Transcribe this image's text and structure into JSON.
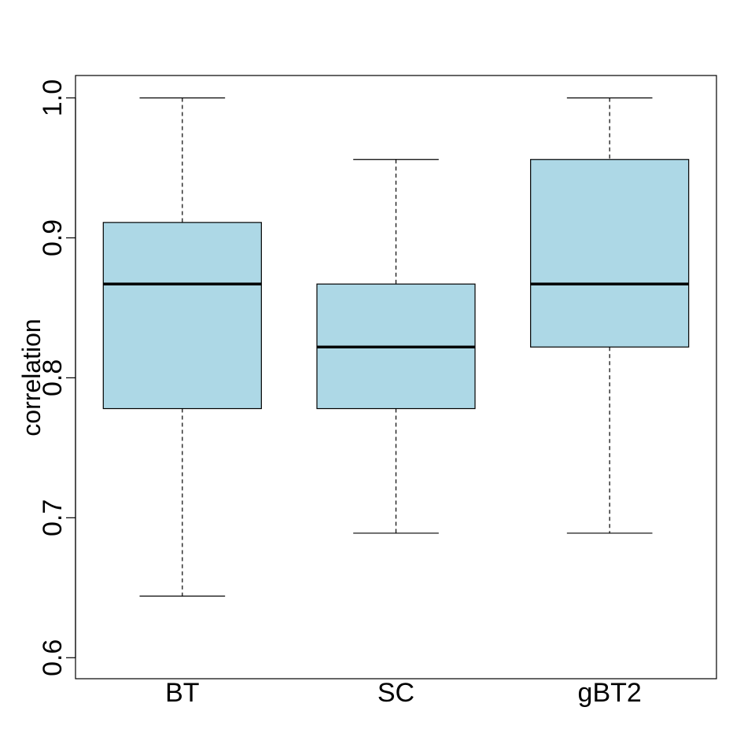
{
  "chart_data": {
    "type": "boxplot",
    "title": "",
    "xlabel": "",
    "ylabel": "correlation",
    "ylim": [
      0.585,
      1.016
    ],
    "yticks": [
      0.6,
      0.7,
      0.8,
      0.9,
      1.0
    ],
    "ytick_labels": [
      "0.6",
      "0.7",
      "0.8",
      "0.9",
      "1.0"
    ],
    "grid": false,
    "box_fill": "#add8e6",
    "categories": [
      "BT",
      "SC",
      "gBT2"
    ],
    "boxes": [
      {
        "name": "BT",
        "whisker_low": 0.644,
        "q1": 0.778,
        "median": 0.867,
        "q3": 0.911,
        "whisker_high": 1.0
      },
      {
        "name": "SC",
        "whisker_low": 0.689,
        "q1": 0.778,
        "median": 0.822,
        "q3": 0.867,
        "whisker_high": 0.956
      },
      {
        "name": "gBT2",
        "whisker_low": 0.689,
        "q1": 0.822,
        "median": 0.867,
        "q3": 0.956,
        "whisker_high": 1.0
      }
    ]
  }
}
